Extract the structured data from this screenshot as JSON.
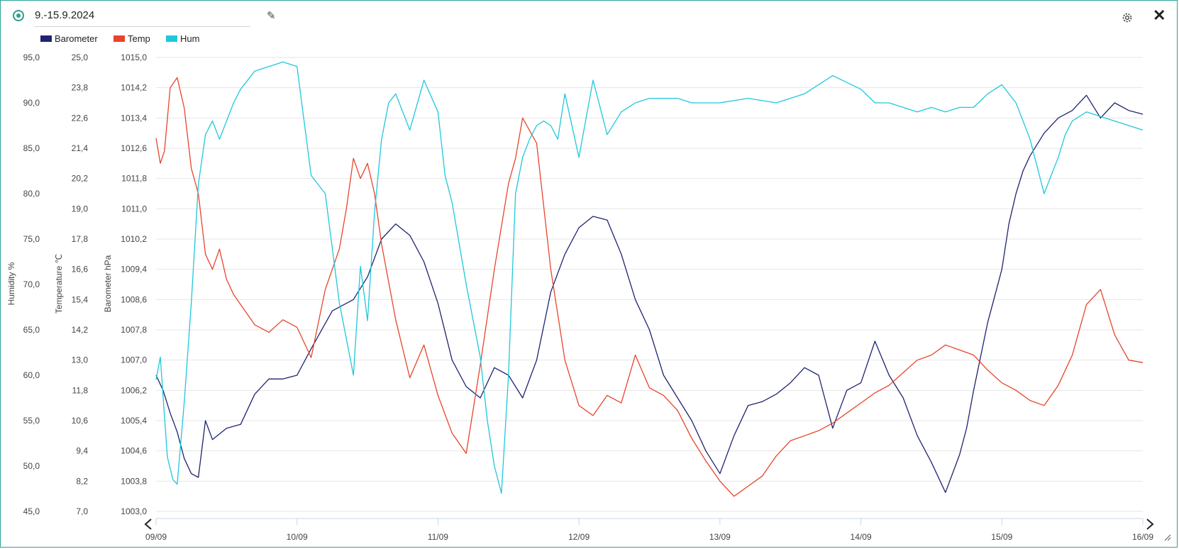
{
  "header": {
    "title": "9.-15.9.2024"
  },
  "legend": [
    {
      "label": "Barometer",
      "color": "#1f2370"
    },
    {
      "label": "Temp",
      "color": "#e8442c"
    },
    {
      "label": "Hum",
      "color": "#1ec8dc"
    }
  ],
  "nav": {
    "prev_icon": "chevron-left-icon",
    "next_icon": "chevron-right-icon"
  },
  "chart_data": {
    "type": "line",
    "x_ticks": [
      "09/09",
      "10/09",
      "11/09",
      "12/09",
      "13/09",
      "14/09",
      "15/09",
      "16/09"
    ],
    "axes": [
      {
        "label": "Humidity %",
        "ticks": [
          "45,0",
          "50,0",
          "55,0",
          "60,0",
          "65,0",
          "70,0",
          "75,0",
          "80,0",
          "85,0",
          "90,0",
          "95,0"
        ],
        "range": [
          45,
          95
        ]
      },
      {
        "label": "Temperature ℃",
        "ticks": [
          "7,0",
          "8,2",
          "9,4",
          "10,6",
          "11,8",
          "13,0",
          "14,2",
          "15,4",
          "16,6",
          "17,8",
          "19,0",
          "20,2",
          "21,4",
          "22,6",
          "23,8",
          "25,0"
        ],
        "range": [
          7,
          25
        ]
      },
      {
        "label": "Barometer hPa",
        "ticks": [
          "1003,0",
          "1003,8",
          "1004,6",
          "1005,4",
          "1006,2",
          "1007,0",
          "1007,8",
          "1008,6",
          "1009,4",
          "1010,2",
          "1011,0",
          "1011,8",
          "1012,6",
          "1013,4",
          "1014,2",
          "1015,0"
        ],
        "range": [
          1003,
          1015
        ]
      }
    ],
    "series": [
      {
        "name": "Barometer",
        "axis": 2,
        "color": "#1f2370",
        "x": [
          0.0,
          0.05,
          0.1,
          0.15,
          0.2,
          0.25,
          0.3,
          0.35,
          0.4,
          0.5,
          0.6,
          0.7,
          0.8,
          0.9,
          1.0,
          1.1,
          1.25,
          1.4,
          1.5,
          1.6,
          1.7,
          1.8,
          1.9,
          2.0,
          2.1,
          2.2,
          2.3,
          2.4,
          2.5,
          2.6,
          2.7,
          2.8,
          2.9,
          3.0,
          3.1,
          3.2,
          3.3,
          3.4,
          3.5,
          3.6,
          3.7,
          3.8,
          3.9,
          4.0,
          4.1,
          4.2,
          4.3,
          4.4,
          4.5,
          4.6,
          4.7,
          4.8,
          4.9,
          5.0,
          5.1,
          5.2,
          5.3,
          5.4,
          5.5,
          5.6,
          5.7,
          5.75,
          5.8,
          5.9,
          6.0,
          6.05,
          6.1,
          6.15,
          6.2,
          6.3,
          6.4,
          6.5,
          6.6,
          6.7,
          6.8,
          6.9,
          7.0
        ],
        "values": [
          1006.6,
          1006.2,
          1005.6,
          1005.1,
          1004.4,
          1004.0,
          1003.9,
          1005.4,
          1004.9,
          1005.2,
          1005.3,
          1006.1,
          1006.5,
          1006.5,
          1006.6,
          1007.3,
          1008.3,
          1008.6,
          1009.2,
          1010.2,
          1010.6,
          1010.3,
          1009.6,
          1008.5,
          1007.0,
          1006.3,
          1006.0,
          1006.8,
          1006.6,
          1006.0,
          1007.0,
          1008.8,
          1009.8,
          1010.5,
          1010.8,
          1010.7,
          1009.8,
          1008.6,
          1007.8,
          1006.6,
          1006.0,
          1005.4,
          1004.6,
          1004.0,
          1005.0,
          1005.8,
          1005.9,
          1006.1,
          1006.4,
          1006.8,
          1006.6,
          1005.2,
          1006.2,
          1006.4,
          1007.5,
          1006.6,
          1006.0,
          1005.0,
          1004.3,
          1003.5,
          1004.5,
          1005.2,
          1006.2,
          1008.0,
          1009.4,
          1010.6,
          1011.4,
          1012.0,
          1012.4,
          1013.0,
          1013.4,
          1013.6,
          1014.0,
          1013.4,
          1013.8,
          1013.6,
          1013.5
        ]
      },
      {
        "name": "Temp",
        "axis": 1,
        "color": "#e8442c",
        "x": [
          0.0,
          0.03,
          0.06,
          0.1,
          0.15,
          0.2,
          0.25,
          0.3,
          0.35,
          0.4,
          0.45,
          0.5,
          0.55,
          0.6,
          0.7,
          0.8,
          0.9,
          1.0,
          1.1,
          1.2,
          1.3,
          1.35,
          1.4,
          1.45,
          1.5,
          1.55,
          1.6,
          1.7,
          1.8,
          1.9,
          2.0,
          2.1,
          2.2,
          2.3,
          2.4,
          2.5,
          2.55,
          2.6,
          2.7,
          2.8,
          2.9,
          3.0,
          3.1,
          3.2,
          3.3,
          3.4,
          3.5,
          3.6,
          3.7,
          3.8,
          3.9,
          4.0,
          4.1,
          4.2,
          4.3,
          4.4,
          4.5,
          4.6,
          4.7,
          4.8,
          4.9,
          5.0,
          5.1,
          5.2,
          5.3,
          5.4,
          5.5,
          5.6,
          5.7,
          5.8,
          5.9,
          6.0,
          6.1,
          6.2,
          6.3,
          6.4,
          6.5,
          6.6,
          6.7,
          6.8,
          6.9,
          7.0
        ],
        "values": [
          21.8,
          20.8,
          21.3,
          23.8,
          24.2,
          23.0,
          20.6,
          19.6,
          17.2,
          16.6,
          17.4,
          16.2,
          15.6,
          15.2,
          14.4,
          14.1,
          14.6,
          14.3,
          13.1,
          15.8,
          17.4,
          19.0,
          21.0,
          20.2,
          20.8,
          19.6,
          17.6,
          14.6,
          12.3,
          13.6,
          11.6,
          10.1,
          9.3,
          12.8,
          16.6,
          20.0,
          21.0,
          22.6,
          21.6,
          16.6,
          13.0,
          11.2,
          10.8,
          11.6,
          11.3,
          13.2,
          11.9,
          11.6,
          11.0,
          9.9,
          9.0,
          8.2,
          7.6,
          8.0,
          8.4,
          9.2,
          9.8,
          10.0,
          10.2,
          10.5,
          10.9,
          11.3,
          11.7,
          12.0,
          12.5,
          13.0,
          13.2,
          13.6,
          13.4,
          13.2,
          12.6,
          12.1,
          11.8,
          11.4,
          11.2,
          12.0,
          13.2,
          15.2,
          15.8,
          14.0,
          13.0,
          12.9
        ]
      },
      {
        "name": "Hum",
        "axis": 0,
        "color": "#1ec8dc",
        "x": [
          0.0,
          0.03,
          0.08,
          0.12,
          0.15,
          0.2,
          0.25,
          0.3,
          0.35,
          0.4,
          0.45,
          0.5,
          0.55,
          0.6,
          0.7,
          0.8,
          0.9,
          1.0,
          1.1,
          1.2,
          1.3,
          1.35,
          1.4,
          1.45,
          1.5,
          1.55,
          1.6,
          1.65,
          1.7,
          1.75,
          1.8,
          1.9,
          2.0,
          2.05,
          2.1,
          2.2,
          2.3,
          2.35,
          2.4,
          2.45,
          2.5,
          2.55,
          2.6,
          2.65,
          2.7,
          2.75,
          2.8,
          2.85,
          2.9,
          3.0,
          3.1,
          3.2,
          3.3,
          3.4,
          3.5,
          3.6,
          3.7,
          3.8,
          3.9,
          4.0,
          4.2,
          4.4,
          4.6,
          4.8,
          5.0,
          5.1,
          5.2,
          5.3,
          5.4,
          5.5,
          5.6,
          5.7,
          5.8,
          5.9,
          6.0,
          6.1,
          6.2,
          6.3,
          6.35,
          6.4,
          6.45,
          6.5,
          6.55,
          6.6,
          6.7,
          6.8,
          6.9,
          7.0
        ],
        "values": [
          59.5,
          62.0,
          51.0,
          48.5,
          48.0,
          57.0,
          68.0,
          81.0,
          86.5,
          88.0,
          86.0,
          88.0,
          90.0,
          91.5,
          93.5,
          94.0,
          94.5,
          94.0,
          82.0,
          80.0,
          68.0,
          64.0,
          60.0,
          72.0,
          66.0,
          78.0,
          86.0,
          90.0,
          91.0,
          89.0,
          87.0,
          92.5,
          89.0,
          82.0,
          79.0,
          70.0,
          62.0,
          55.0,
          50.0,
          47.0,
          60.0,
          80.0,
          84.0,
          86.0,
          87.5,
          88.0,
          87.5,
          86.0,
          91.0,
          84.0,
          92.5,
          86.5,
          89.0,
          90.0,
          90.5,
          90.5,
          90.5,
          90.0,
          90.0,
          90.0,
          90.5,
          90.0,
          91.0,
          93.0,
          91.5,
          90.0,
          90.0,
          89.5,
          89.0,
          89.5,
          89.0,
          89.5,
          89.5,
          91.0,
          92.0,
          90.0,
          86.0,
          80.0,
          82.0,
          84.0,
          86.5,
          88.0,
          88.5,
          89.0,
          88.5,
          88.0,
          87.5,
          87.0
        ]
      }
    ]
  }
}
